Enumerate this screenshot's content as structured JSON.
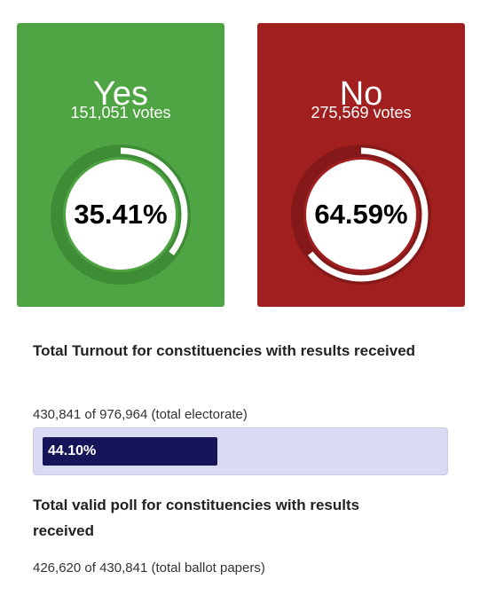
{
  "colors": {
    "yes_card": "#4fa543",
    "yes_track": "#3f8c36",
    "yes_arc": "#ffffff",
    "no_card": "#a11f1f",
    "no_track": "#851919",
    "no_arc": "#ffffff",
    "progress_track": "#d9dbf3",
    "progress_fill": "#16155a"
  },
  "results": {
    "yes": {
      "title": "Yes",
      "votes": "151,051 votes",
      "percent_label": "35.41%",
      "fraction": 0.3541
    },
    "no": {
      "title": "No",
      "votes": "275,569 votes",
      "percent_label": "64.59%",
      "fraction": 0.6459
    }
  },
  "turnout": {
    "heading": "Total Turnout for constituencies with results received",
    "summary": "430,841 of 976,964 (total electorate)",
    "percent_label": "44.10%",
    "fraction": 0.441
  },
  "valid_poll": {
    "heading": "Total valid poll for constituencies with results received",
    "summary": "426,620 of 430,841 (total ballot papers)"
  }
}
